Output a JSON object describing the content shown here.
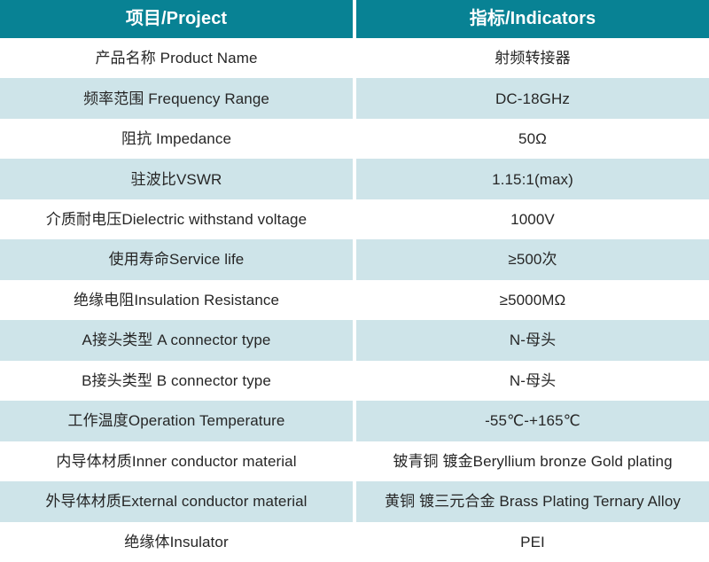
{
  "colors": {
    "header_bg": "#088294",
    "header_text": "#ffffff",
    "row_bg": "#ffffff",
    "row_alt_bg": "#cee4e9",
    "body_text": "#262626",
    "divider": "#ffffff"
  },
  "table": {
    "headers": [
      {
        "label": "项目/Project"
      },
      {
        "label": "指标/Indicators"
      }
    ],
    "rows": [
      {
        "project": "产品名称 Product Name",
        "indicator": "射频转接器"
      },
      {
        "project": "频率范围 Frequency Range",
        "indicator": "DC-18GHz"
      },
      {
        "project": "阻抗 Impedance",
        "indicator": "50Ω"
      },
      {
        "project": "驻波比VSWR",
        "indicator": "1.15:1(max)"
      },
      {
        "project": "介质耐电压Dielectric withstand voltage",
        "indicator": "1000V"
      },
      {
        "project": "使用寿命Service life",
        "indicator": "≥500次"
      },
      {
        "project": "绝缘电阻Insulation Resistance",
        "indicator": "≥5000MΩ"
      },
      {
        "project": "A接头类型 A connector type",
        "indicator": "N-母头"
      },
      {
        "project": "B接头类型 B connector type",
        "indicator": "N-母头"
      },
      {
        "project": "工作温度Operation Temperature",
        "indicator": "-55℃-+165℃"
      },
      {
        "project": "内导体材质Inner conductor material",
        "indicator": "铍青铜 镀金Beryllium bronze Gold plating"
      },
      {
        "project": "外导体材质External conductor material",
        "indicator": "黄铜 镀三元合金 Brass Plating Ternary Alloy"
      },
      {
        "project": "绝缘体Insulator",
        "indicator": "PEI"
      }
    ]
  }
}
